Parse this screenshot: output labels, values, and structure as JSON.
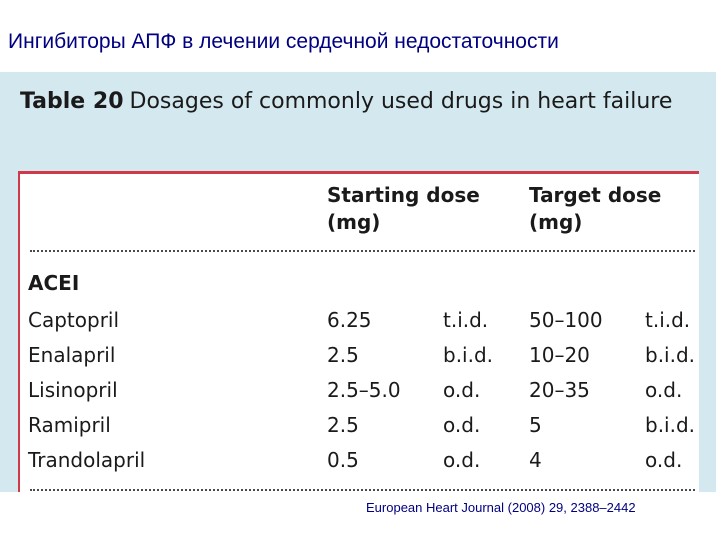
{
  "slide": {
    "title": "Ингибиторы АПФ в лечении сердечной недостаточности",
    "footer": "European Heart Journal (2008) 29, 2388–2442"
  },
  "table": {
    "number": "Table 20",
    "caption": "Dosages of commonly used drugs in heart failure",
    "headers": {
      "starting_dose": [
        "Starting dose",
        "(mg)"
      ],
      "target_dose": [
        "Target dose",
        "(mg)"
      ]
    },
    "section": "ACEI",
    "rows": [
      {
        "drug": "Captopril",
        "start": "6.25",
        "start_freq": "t.i.d.",
        "target": "50–100",
        "target_freq": "t.i.d."
      },
      {
        "drug": "Enalapril",
        "start": "2.5",
        "start_freq": "b.i.d.",
        "target": "10–20",
        "target_freq": "b.i.d."
      },
      {
        "drug": "Lisinopril",
        "start": "2.5–5.0",
        "start_freq": "o.d.",
        "target": "20–35",
        "target_freq": "o.d."
      },
      {
        "drug": "Ramipril",
        "start": "2.5",
        "start_freq": "o.d.",
        "target": "5",
        "target_freq": "b.i.d."
      },
      {
        "drug": "Trandolapril",
        "start": "0.5",
        "start_freq": "o.d.",
        "target": "4",
        "target_freq": "o.d."
      }
    ]
  },
  "colors": {
    "title": "#000080",
    "panel_background": "#d4e8ef",
    "table_accent": "#d03a48"
  }
}
